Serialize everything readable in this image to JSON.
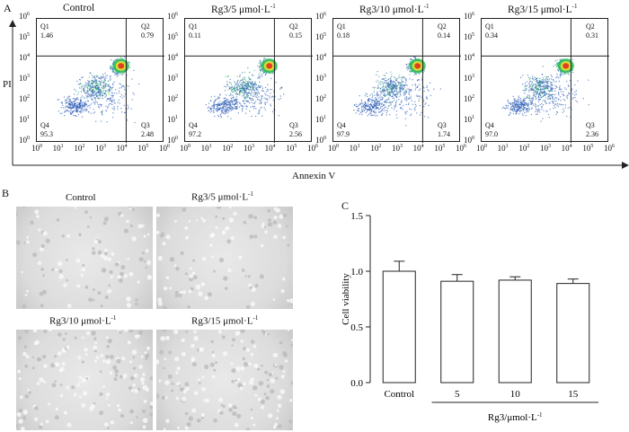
{
  "panel_a": {
    "label": "A",
    "y_axis_name": "PI",
    "x_axis_name": "Annexin V",
    "tick_exponents": [
      "0",
      "1",
      "2",
      "3",
      "4",
      "5",
      "6"
    ],
    "tick_base": "10",
    "plots": [
      {
        "title_main": "Control",
        "title_unit": "",
        "title_sup": "",
        "q1": "1.46",
        "q2": "0.79",
        "q3": "2.48",
        "q4": "95.3"
      },
      {
        "title_main": "Rg3/5 ",
        "title_unit": "μmol·L",
        "title_sup": "-1",
        "q1": "0.11",
        "q2": "0.15",
        "q3": "2.56",
        "q4": "97.2"
      },
      {
        "title_main": "Rg3/10 ",
        "title_unit": "μmol·L",
        "title_sup": "-1",
        "q1": "0.18",
        "q2": "0.14",
        "q3": "1.74",
        "q4": "97.9"
      },
      {
        "title_main": "Rg3/15 ",
        "title_unit": "μmol·L",
        "title_sup": "-1",
        "q1": "0.34",
        "q2": "0.31",
        "q3": "2.36",
        "q4": "97.0"
      }
    ],
    "quadrant_names": [
      "Q1",
      "Q2",
      "Q3",
      "Q4"
    ]
  },
  "panel_b": {
    "label": "B",
    "images": [
      {
        "title": "Control",
        "sup": ""
      },
      {
        "title": "Rg3/5 μmol·L",
        "sup": "-1"
      },
      {
        "title": "Rg3/10 μmol·L",
        "sup": "-1"
      },
      {
        "title": "Rg3/15 μmol·L",
        "sup": "-1"
      }
    ]
  },
  "panel_c": {
    "label": "C",
    "group_label": "Rg3/μmol·L",
    "group_label_sup": "-1",
    "chart_data": {
      "type": "bar",
      "categories": [
        "Control",
        "5",
        "10",
        "15"
      ],
      "values": [
        1.0,
        0.91,
        0.92,
        0.89
      ],
      "errors": [
        0.09,
        0.06,
        0.03,
        0.04
      ],
      "ylabel": "Cell viability",
      "ylim": [
        0.0,
        1.5
      ],
      "yticks": [
        "0.0",
        "0.5",
        "1.0",
        "1.5"
      ]
    }
  },
  "colors": {
    "scatter_low": "#2f5fb8",
    "scatter_mid": "#2fbf5f",
    "scatter_high": "#e8e030",
    "scatter_peak": "#e03020",
    "axis": "#222222"
  }
}
